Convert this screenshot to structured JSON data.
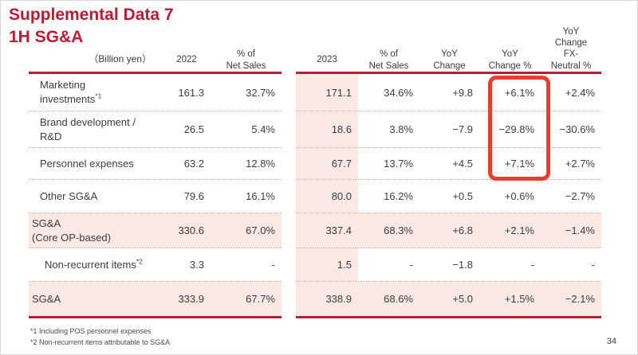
{
  "title": {
    "line1": "Supplemental Data 7",
    "line2": "1H SG&A"
  },
  "page_number": "34",
  "colors": {
    "accent_crimson": "#bc1b34",
    "highlight_red": "#ec3b2f",
    "row_pink": "#fae8e5",
    "dotted_separator": "#d59b93",
    "text": "#3c3c3c"
  },
  "table": {
    "unit_label": "（Billion yen）",
    "headers": {
      "h2022": "2022",
      "hpct22": "% of\nNet Sales",
      "h2023": "2023",
      "hpct23": "% of\nNet Sales",
      "hyoy": "YoY\nChange",
      "hyoyp": "YoY\nChange %",
      "hfx": "YoY\nChange\nFX-\nNeutral %"
    },
    "rows": [
      {
        "label1": "Marketing",
        "label2": "investments",
        "sup": "*1",
        "v2022": "161.3",
        "p2022": "32.7%",
        "v2023": "171.1",
        "p2023": "34.6%",
        "yoy": "+9.8",
        "yoyp": "+6.1%",
        "fx": "+2.4%"
      },
      {
        "label1": "Brand development /",
        "label2": "R&D",
        "v2022": "26.5",
        "p2022": "5.4%",
        "v2023": "18.6",
        "p2023": "3.8%",
        "yoy": "−7.9",
        "yoyp": "−29.8%",
        "fx": "−30.6%"
      },
      {
        "label1": "Personnel expenses",
        "v2022": "63.2",
        "p2022": "12.8%",
        "v2023": "67.7",
        "p2023": "13.7%",
        "yoy": "+4.5",
        "yoyp": "+7.1%",
        "fx": "+2.7%"
      },
      {
        "label1": "Other SG&A",
        "v2022": "79.6",
        "p2022": "16.1%",
        "v2023": "80.0",
        "p2023": "16.2%",
        "yoy": "+0.5",
        "yoyp": "+0.6%",
        "fx": "−2.7%"
      },
      {
        "label1": "SG&A",
        "label2": "(Core OP-based)",
        "v2022": "330.6",
        "p2022": "67.0%",
        "v2023": "337.4",
        "p2023": "68.3%",
        "yoy": "+6.8",
        "yoyp": "+2.1%",
        "fx": "−1.4%"
      },
      {
        "label1": "Non-recurrent items",
        "sup": "*2",
        "v2022": "3.3",
        "p2022": "-",
        "v2023": "1.5",
        "p2023": "-",
        "yoy": "−1.8",
        "yoyp": "-",
        "fx": "-"
      },
      {
        "label1": "SG&A",
        "v2022": "333.9",
        "p2022": "67.7%",
        "v2023": "338.9",
        "p2023": "68.6%",
        "yoy": "+5.0",
        "yoyp": "+1.5%",
        "fx": "−2.1%"
      }
    ]
  },
  "highlight": {
    "description": "red rounded rectangle around YoY Change % values of first three rows"
  },
  "footnotes": {
    "note1": "*1 Including POS personnel expenses",
    "note2": "*2 Non-recurrent items attributable to SG&A"
  }
}
